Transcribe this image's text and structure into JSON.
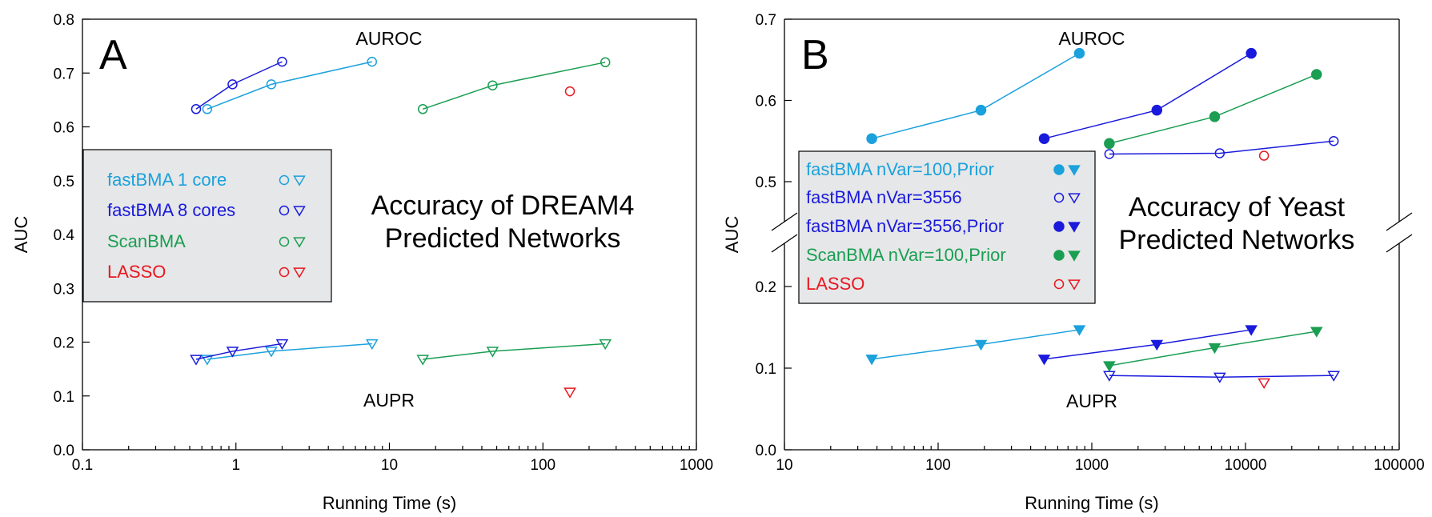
{
  "chart_data": [
    {
      "type": "line",
      "panel_letter": "A",
      "title_lines": [
        "Accuracy of DREAM4",
        "Predicted Networks"
      ],
      "xlabel": "Running Time (s)",
      "ylabel": "AUC",
      "x_scale": "log",
      "xlim": [
        0.1,
        1000
      ],
      "ylim": [
        0,
        0.8
      ],
      "x_ticks": [
        0.1,
        1,
        10,
        100,
        1000
      ],
      "x_tick_labels": [
        "0.1",
        "1",
        "10",
        "100",
        "1000"
      ],
      "y_ticks": [
        0,
        0.1,
        0.2,
        0.3,
        0.4,
        0.5,
        0.6,
        0.7,
        0.8
      ],
      "y_tick_labels": [
        "0.0",
        "0.1",
        "0.2",
        "0.3",
        "0.4",
        "0.5",
        "0.6",
        "0.7",
        "0.8"
      ],
      "annotations": {
        "auroc": "AUROC",
        "aupr": "AUPR"
      },
      "legend": {
        "placement": "left"
      },
      "series": [
        {
          "name": "fastBMA 1 core",
          "color": "#1ba1dc",
          "filled": false,
          "auroc": {
            "x": [
              0.65,
              1.7,
              7.7
            ],
            "y": [
              0.633,
              0.679,
              0.721
            ]
          },
          "aupr": {
            "x": [
              0.65,
              1.7,
              7.7
            ],
            "y": [
              0.168,
              0.183,
              0.197
            ]
          }
        },
        {
          "name": "fastBMA 8 cores",
          "color": "#1a1adc",
          "filled": false,
          "auroc": {
            "x": [
              0.55,
              0.95,
              2.0
            ],
            "y": [
              0.633,
              0.679,
              0.721
            ]
          },
          "aupr": {
            "x": [
              0.55,
              0.95,
              2.0
            ],
            "y": [
              0.168,
              0.183,
              0.197
            ]
          }
        },
        {
          "name": "ScanBMA",
          "color": "#1a9e52",
          "filled": false,
          "auroc": {
            "x": [
              16.5,
              47,
              255
            ],
            "y": [
              0.633,
              0.677,
              0.72
            ]
          },
          "aupr": {
            "x": [
              16.5,
              47,
              255
            ],
            "y": [
              0.168,
              0.183,
              0.197
            ]
          }
        },
        {
          "name": "LASSO",
          "color": "#e8171f",
          "filled": false,
          "auroc": {
            "x": [
              150
            ],
            "y": [
              0.666
            ]
          },
          "aupr": {
            "x": [
              150
            ],
            "y": [
              0.107
            ]
          }
        }
      ]
    },
    {
      "type": "line",
      "panel_letter": "B",
      "title_lines": [
        "Accuracy of Yeast",
        "Predicted Networks"
      ],
      "xlabel": "Running Time (s)",
      "ylabel": "AUC",
      "x_scale": "log",
      "xlim": [
        10,
        100000
      ],
      "y_axis_broken": true,
      "y_lower_range": [
        0,
        0.2
      ],
      "y_upper_range": [
        0.5,
        0.7
      ],
      "x_ticks": [
        10,
        100,
        1000,
        10000,
        100000
      ],
      "x_tick_labels": [
        "10",
        "100",
        "1000",
        "10000",
        "100000"
      ],
      "y_ticks": [
        0,
        0.1,
        0.2,
        0.5,
        0.6,
        0.7
      ],
      "y_tick_labels": [
        "0.0",
        "0.1",
        "0.2",
        "0.5",
        "0.6",
        "0.7"
      ],
      "annotations": {
        "auroc": "AUROC",
        "aupr": "AUPR"
      },
      "legend": {
        "placement": "left"
      },
      "series": [
        {
          "name": "fastBMA nVar=100,Prior",
          "color": "#1ba1dc",
          "filled": true,
          "auroc": {
            "x": [
              37,
              190,
              830
            ],
            "y": [
              0.553,
              0.588,
              0.658
            ]
          },
          "aupr": {
            "x": [
              37,
              190,
              830
            ],
            "y": [
              0.111,
              0.129,
              0.147
            ]
          }
        },
        {
          "name": "fastBMA nVar=3556",
          "color": "#1a1adc",
          "filled": false,
          "auroc": {
            "x": [
              1300,
              6800,
              37500
            ],
            "y": [
              0.534,
              0.535,
              0.55
            ]
          },
          "aupr": {
            "x": [
              1300,
              6800,
              37500
            ],
            "y": [
              0.091,
              0.089,
              0.091
            ]
          }
        },
        {
          "name": "fastBMA nVar=3556,Prior",
          "color": "#1a1adc",
          "filled": true,
          "auroc": {
            "x": [
              490,
              2650,
              10900
            ],
            "y": [
              0.553,
              0.588,
              0.658
            ]
          },
          "aupr": {
            "x": [
              490,
              2650,
              10900
            ],
            "y": [
              0.111,
              0.129,
              0.147
            ]
          }
        },
        {
          "name": "ScanBMA nVar=100,Prior",
          "color": "#1a9e52",
          "filled": true,
          "auroc": {
            "x": [
              1300,
              6300,
              29000
            ],
            "y": [
              0.547,
              0.58,
              0.632
            ]
          },
          "aupr": {
            "x": [
              1300,
              6300,
              29000
            ],
            "y": [
              0.103,
              0.125,
              0.145
            ]
          }
        },
        {
          "name": "LASSO",
          "color": "#e8171f",
          "filled": false,
          "auroc": {
            "x": [
              13200
            ],
            "y": [
              0.532
            ]
          },
          "aupr": {
            "x": [
              13200
            ],
            "y": [
              0.082
            ]
          }
        }
      ]
    }
  ]
}
